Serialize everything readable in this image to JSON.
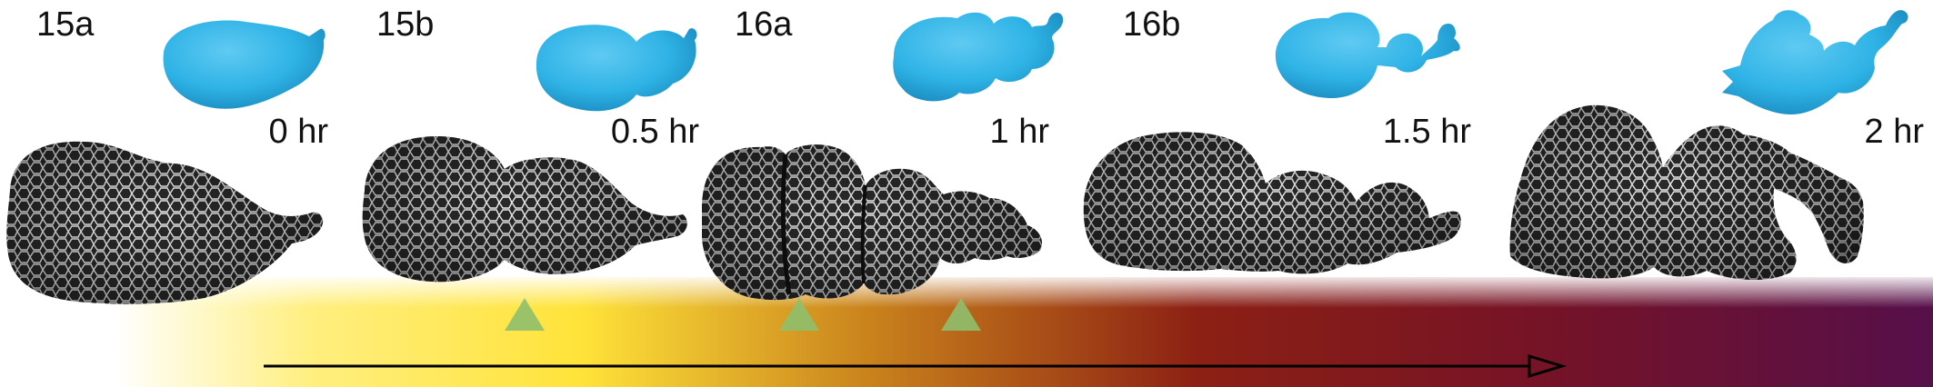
{
  "stages": [
    {
      "stage": "15a",
      "time": "0 hr"
    },
    {
      "stage": "15b",
      "time": "0.5 hr"
    },
    {
      "stage": "16a",
      "time": "1 hr"
    },
    {
      "stage": "16b",
      "time": "1.5 hr"
    },
    {
      "stage": "",
      "time": "2 hr"
    }
  ],
  "colors": {
    "model": "#2fb3e6",
    "model_dark": "#1e8fc0",
    "tissue_light": "#e8e8e8",
    "tissue_dark": "#1a1a1a",
    "marker": "#8fbf6d",
    "gradient": [
      "#ffffff",
      "#ffe33a",
      "#c98c1a",
      "#8a1e12",
      "#6e1228",
      "#55104a"
    ],
    "arrow": "#000000"
  },
  "icons": {
    "marker": "triangle-up",
    "arrow": "right-arrow-open-head"
  }
}
